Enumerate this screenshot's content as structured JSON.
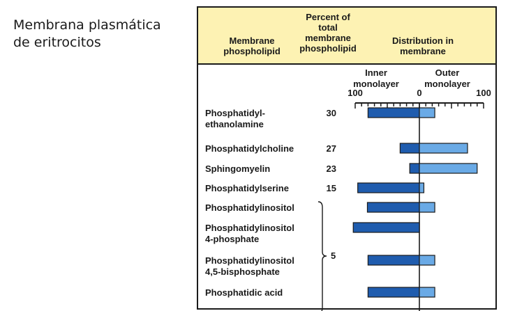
{
  "caption": {
    "line1": "Membrana plasmática",
    "line2": "de eritrocitos"
  },
  "header": {
    "col1": "Membrane\nphospholipid",
    "col2": "Percent of\ntotal\nmembrane\nphospholipid",
    "col3": "Distribution in\nmembrane"
  },
  "chart_data": {
    "type": "bar",
    "subtype": "diverging-horizontal",
    "axis": {
      "left_title": "Inner\nmonolayer",
      "right_title": "Outer\nmonolayer",
      "ticks": [
        "100",
        "0",
        "100"
      ],
      "range": [
        -100,
        100
      ]
    },
    "colors": {
      "inner": "#1f5cae",
      "outer": "#6aaae6",
      "stroke": "#1a1a1a"
    },
    "group_label": "5",
    "rows": [
      {
        "name": "Phosphatidyl-\nethanolamine",
        "percent": "30",
        "inner": 80,
        "outer": 24
      },
      {
        "name": "Phosphatidylcholine",
        "percent": "27",
        "inner": 30,
        "outer": 75
      },
      {
        "name": "Sphingomyelin",
        "percent": "23",
        "inner": 15,
        "outer": 90
      },
      {
        "name": "Phosphatidylserine",
        "percent": "15",
        "inner": 96,
        "outer": 7
      },
      {
        "name": "Phosphatidylinositol",
        "percent": "",
        "inner": 81,
        "outer": 24
      },
      {
        "name": "Phosphatidylinositol\n4-phosphate",
        "percent": "",
        "inner": 103,
        "outer": 0
      },
      {
        "name": "Phosphatidylinositol\n4,5-bisphosphate",
        "percent": "",
        "inner": 80,
        "outer": 24
      },
      {
        "name": "Phosphatidic acid",
        "percent": "",
        "inner": 80,
        "outer": 24
      }
    ]
  }
}
